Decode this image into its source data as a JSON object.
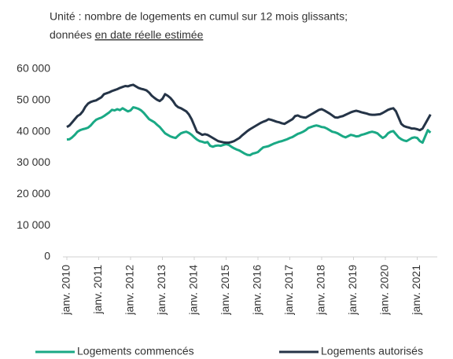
{
  "chart_data": {
    "type": "line",
    "subtitle": [
      "Unité : nombre de logements en cumul sur 12 mois glissants;",
      "données",
      "en date réelle estimée"
    ],
    "categories": [
      "janv. 2010",
      null,
      null,
      null,
      null,
      null,
      null,
      null,
      null,
      null,
      null,
      null,
      "janv. 2011",
      null,
      null,
      null,
      null,
      null,
      null,
      null,
      null,
      null,
      null,
      null,
      "janv. 2012",
      null,
      null,
      null,
      null,
      null,
      null,
      null,
      null,
      null,
      null,
      null,
      "janv. 2013",
      null,
      null,
      null,
      null,
      null,
      null,
      null,
      null,
      null,
      null,
      null,
      "janv. 2014",
      null,
      null,
      null,
      null,
      null,
      null,
      null,
      null,
      null,
      null,
      null,
      "janv. 2015",
      null,
      null,
      null,
      null,
      null,
      null,
      null,
      null,
      null,
      null,
      null,
      "janv. 2016",
      null,
      null,
      null,
      null,
      null,
      null,
      null,
      null,
      null,
      null,
      null,
      "janv. 2017",
      null,
      null,
      null,
      null,
      null,
      null,
      null,
      null,
      null,
      null,
      null,
      "janv. 2018",
      null,
      null,
      null,
      null,
      null,
      null,
      null,
      null,
      null,
      null,
      null,
      "janv. 2019",
      null,
      null,
      null,
      null,
      null,
      null,
      null,
      null,
      null,
      null,
      null,
      "janv. 2020",
      null,
      null,
      null,
      null,
      null,
      null,
      null,
      null,
      null,
      null,
      null,
      "janv. 2021",
      null,
      null,
      null,
      null,
      null
    ],
    "series": [
      {
        "name": "Logements commencés",
        "color": "#1aa985",
        "values": [
          37500,
          37600,
          38200,
          39000,
          40000,
          40500,
          40800,
          41000,
          41300,
          42000,
          43000,
          43800,
          44200,
          44500,
          45000,
          45600,
          46200,
          47000,
          46800,
          47200,
          46900,
          47500,
          47000,
          46500,
          46800,
          47800,
          47600,
          47300,
          46800,
          46000,
          45000,
          44000,
          43500,
          43000,
          42200,
          41500,
          40500,
          39500,
          39000,
          38500,
          38200,
          38000,
          38800,
          39500,
          39800,
          40000,
          39600,
          39000,
          38200,
          37500,
          37000,
          36800,
          36500,
          36700,
          35500,
          35200,
          35500,
          35600,
          35500,
          35800,
          36000,
          35800,
          35200,
          34700,
          34300,
          34000,
          33500,
          33000,
          32600,
          32500,
          33000,
          33200,
          33500,
          34300,
          35000,
          35200,
          35400,
          35800,
          36200,
          36500,
          36800,
          37000,
          37300,
          37600,
          38000,
          38300,
          38800,
          39300,
          39600,
          40000,
          40500,
          41200,
          41500,
          41800,
          42000,
          41800,
          41500,
          41400,
          41000,
          40500,
          40000,
          39800,
          39500,
          39000,
          38500,
          38200,
          38600,
          39000,
          38800,
          38500,
          38600,
          39000,
          39200,
          39500,
          39800,
          40000,
          39800,
          39500,
          38700,
          38000,
          38500,
          39500,
          40000,
          40200,
          39200,
          38200,
          37600,
          37200,
          37000,
          37500,
          38000,
          38200,
          38000,
          37000,
          36500,
          38500,
          40500,
          39700
        ]
      },
      {
        "name": "Logements autorisés",
        "color": "#253447",
        "values": [
          41500,
          42000,
          43000,
          44000,
          45000,
          45500,
          46500,
          48000,
          49000,
          49500,
          49800,
          50000,
          50500,
          51000,
          52000,
          52300,
          52600,
          53000,
          53300,
          53600,
          54000,
          54300,
          54600,
          54500,
          54800,
          55000,
          54500,
          54000,
          53700,
          53500,
          53200,
          52500,
          51500,
          50800,
          50200,
          49800,
          50500,
          52000,
          51500,
          50800,
          49800,
          48500,
          47800,
          47500,
          47000,
          46500,
          45500,
          44000,
          42000,
          40000,
          39500,
          39000,
          39200,
          39000,
          38500,
          38000,
          37500,
          37000,
          36800,
          36600,
          36500,
          36500,
          36700,
          37000,
          37500,
          38000,
          38800,
          39500,
          40200,
          40800,
          41300,
          41800,
          42300,
          42800,
          43200,
          43500,
          44000,
          43800,
          43500,
          43200,
          43000,
          42700,
          42500,
          43000,
          43500,
          44000,
          45000,
          45200,
          44800,
          44600,
          44500,
          45000,
          45500,
          46000,
          46500,
          47000,
          47200,
          46800,
          46300,
          45800,
          45200,
          44600,
          44500,
          44800,
          45000,
          45400,
          45800,
          46200,
          46500,
          46700,
          46500,
          46200,
          46000,
          45800,
          45500,
          45400,
          45400,
          45500,
          45600,
          46000,
          46500,
          47000,
          47300,
          47500,
          46500,
          44500,
          42500,
          41800,
          41500,
          41300,
          41000,
          41000,
          40800,
          40500,
          41000,
          42500,
          44000,
          45500
        ]
      }
    ],
    "ylim": [
      0,
      60000
    ],
    "yticks": [
      0,
      {
        "value": 10000,
        "label": "10 000"
      },
      {
        "value": 20000,
        "label": "20 000"
      },
      {
        "value": 30000,
        "label": "30 000"
      },
      {
        "value": 40000,
        "label": "40 000"
      },
      {
        "value": 50000,
        "label": "50 000"
      },
      {
        "value": 60000,
        "label": "60 000"
      }
    ],
    "grid": false
  }
}
